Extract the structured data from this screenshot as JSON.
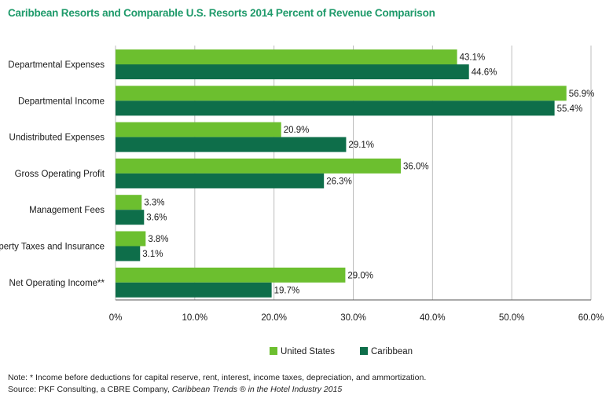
{
  "chart_data": {
    "type": "bar",
    "orientation": "horizontal",
    "title": "Caribbean Resorts and Comparable U.S. Resorts 2014 Percent of Revenue Comparison",
    "categories": [
      "Departmental Expenses",
      "Departmental Income",
      "Undistributed Expenses",
      "Gross Operating Profit",
      "Management Fees",
      "Property Taxes and Insurance",
      "Net Operating Income**"
    ],
    "series": [
      {
        "name": "United States",
        "color": "#6cbf2f",
        "values": [
          43.1,
          56.9,
          20.9,
          36.0,
          3.3,
          3.8,
          29.0
        ],
        "labels": [
          "43.1%",
          "56.9%",
          "20.9%",
          "36.0%",
          "3.3%",
          "3.8%",
          "29.0%"
        ]
      },
      {
        "name": "Caribbean",
        "color": "#0e6e4a",
        "values": [
          44.6,
          55.4,
          29.1,
          26.3,
          3.6,
          3.1,
          19.7
        ],
        "labels": [
          "44.6%",
          "55.4%",
          "29.1%",
          "26.3%",
          "3.6%",
          "3.1%",
          "19.7%"
        ]
      }
    ],
    "xlim": [
      0,
      60
    ],
    "xticks": [
      0,
      10,
      20,
      30,
      40,
      50,
      60
    ],
    "xtick_labels": [
      "0%",
      "10.0%",
      "20.0%",
      "30.0%",
      "40.0%",
      "50.0%",
      "60.0%"
    ],
    "grid": "vertical",
    "legend": "bottom-center",
    "xlabel": "",
    "ylabel": ""
  },
  "footer": {
    "note": "Note: * Income before deductions for capital reserve, rent, interest, income taxes, depreciation, and ammortization.",
    "source_prefix": "Source: PKF Consulting, a CBRE Company, ",
    "source_title": "Caribbean Trends ® in the Hotel Industry 2015"
  }
}
